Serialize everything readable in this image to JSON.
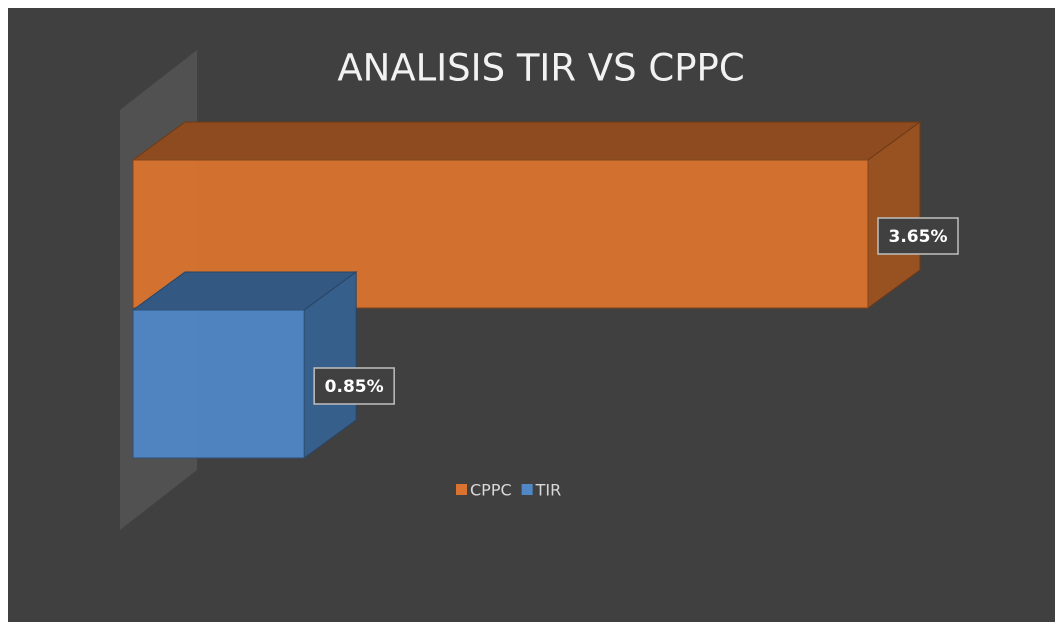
{
  "chart_data": {
    "type": "bar3d",
    "orientation": "horizontal",
    "title": "ANALISIS TIR VS CPPC",
    "categories": [
      null
    ],
    "series": [
      {
        "name": "CPPC",
        "color": "#d9732f",
        "values": [
          3.65
        ],
        "value_labels": [
          "3.65%"
        ]
      },
      {
        "name": "TIR",
        "color": "#4f87c7",
        "values": [
          0.85
        ],
        "value_labels": [
          "0.85%"
        ]
      }
    ],
    "legend": "bottom"
  }
}
